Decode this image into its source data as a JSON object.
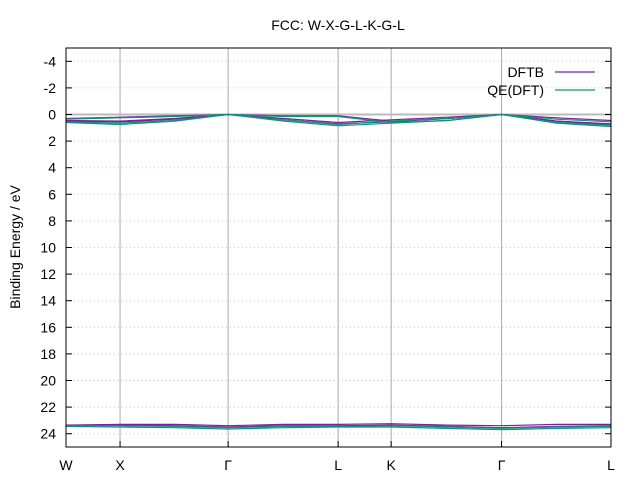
{
  "chart_data": {
    "type": "line",
    "title": "FCC: W-X-G-L-K-G-L",
    "xlabel": "",
    "ylabel": "Binding Energy / eV",
    "ylim": [
      25,
      -5
    ],
    "yticks": [
      -4,
      -2,
      0,
      2,
      4,
      6,
      8,
      10,
      12,
      14,
      16,
      18,
      20,
      22,
      24
    ],
    "xlim": [
      0,
      1
    ],
    "kpoints": [
      {
        "label": "W",
        "x": 0.0
      },
      {
        "label": "X",
        "x": 0.0992
      },
      {
        "label": "Γ",
        "x": 0.2975
      },
      {
        "label": "L",
        "x": 0.4993
      },
      {
        "label": "K",
        "x": 0.5966
      },
      {
        "label": "Γ",
        "x": 0.7992
      },
      {
        "label": "L",
        "x": 1.0
      }
    ],
    "grid": true,
    "legend_position": "top-right",
    "colors": {
      "DFTB": "#7b1fa2",
      "QE": "#119277",
      "fermi": "#bbbbbb"
    },
    "series": [
      {
        "name": "DFTB",
        "color": "#7b1fa2",
        "bands": [
          {
            "x": [
              0,
              0.0992,
              0.2,
              0.2975,
              0.4,
              0.4993,
              0.5966,
              0.7,
              0.7992,
              0.9,
              1.0
            ],
            "y": [
              0.3,
              0.2,
              0.1,
              0.0,
              0.3,
              0.6,
              0.4,
              0.2,
              0.0,
              0.25,
              0.45
            ]
          },
          {
            "x": [
              0,
              0.0992,
              0.2,
              0.2975,
              0.4,
              0.4993,
              0.5966,
              0.7,
              0.7992,
              0.9,
              1.0
            ],
            "y": [
              0.45,
              0.5,
              0.3,
              0.0,
              0.1,
              0.1,
              0.5,
              0.3,
              0.0,
              0.5,
              0.7
            ]
          },
          {
            "x": [
              0,
              0.0992,
              0.2,
              0.2975,
              0.4,
              0.4993,
              0.5966,
              0.7,
              0.7992,
              0.9,
              1.0
            ],
            "y": [
              0.5,
              0.55,
              0.35,
              0.0,
              0.4,
              0.7,
              0.55,
              0.3,
              0.0,
              0.5,
              0.75
            ]
          },
          {
            "x": [
              0,
              0.0992,
              0.2,
              0.2975,
              0.4,
              0.4993,
              0.5966,
              0.7,
              0.7992,
              0.9,
              1.0
            ],
            "y": [
              23.35,
              23.3,
              23.3,
              23.4,
              23.3,
              23.3,
              23.25,
              23.35,
              23.4,
              23.3,
              23.3
            ]
          },
          {
            "x": [
              0,
              0.0992,
              0.2,
              0.2975,
              0.4,
              0.4993,
              0.5966,
              0.7,
              0.7992,
              0.9,
              1.0
            ],
            "y": [
              23.35,
              23.35,
              23.4,
              23.5,
              23.4,
              23.4,
              23.35,
              23.45,
              23.55,
              23.45,
              23.4
            ]
          }
        ]
      },
      {
        "name": "QE(DFT)",
        "color": "#119277",
        "bands": [
          {
            "x": [
              0,
              0.0992,
              0.2,
              0.2975,
              0.4,
              0.4993,
              0.5966,
              0.7,
              0.7992,
              0.9,
              1.0
            ],
            "y": [
              0.35,
              0.25,
              0.15,
              0.0,
              0.4,
              0.75,
              0.5,
              0.3,
              0.0,
              0.35,
              0.55
            ]
          },
          {
            "x": [
              0,
              0.0992,
              0.2,
              0.2975,
              0.4,
              0.4993,
              0.5966,
              0.7,
              0.7992,
              0.9,
              1.0
            ],
            "y": [
              0.55,
              0.65,
              0.45,
              0.0,
              0.15,
              0.15,
              0.6,
              0.45,
              0.0,
              0.6,
              0.8
            ]
          },
          {
            "x": [
              0,
              0.0992,
              0.2,
              0.2975,
              0.4,
              0.4993,
              0.5966,
              0.7,
              0.7992,
              0.9,
              1.0
            ],
            "y": [
              0.6,
              0.75,
              0.5,
              0.0,
              0.5,
              0.85,
              0.65,
              0.45,
              0.0,
              0.65,
              0.9
            ]
          },
          {
            "x": [
              0,
              0.0992,
              0.2,
              0.2975,
              0.4,
              0.4993,
              0.5966,
              0.7,
              0.7992,
              0.9,
              1.0
            ],
            "y": [
              23.4,
              23.4,
              23.45,
              23.55,
              23.45,
              23.45,
              23.4,
              23.5,
              23.6,
              23.5,
              23.45
            ]
          },
          {
            "x": [
              0,
              0.0992,
              0.2,
              0.2975,
              0.4,
              0.4993,
              0.5966,
              0.7,
              0.7992,
              0.9,
              1.0
            ],
            "y": [
              23.45,
              23.5,
              23.55,
              23.65,
              23.55,
              23.5,
              23.5,
              23.6,
              23.7,
              23.6,
              23.55
            ]
          }
        ]
      }
    ],
    "fermi_level": 0
  }
}
